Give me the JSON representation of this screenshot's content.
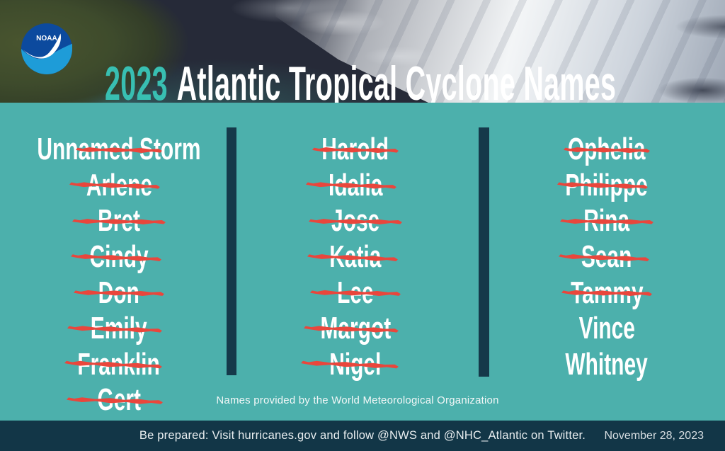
{
  "header": {
    "logo_text": "NOAA",
    "title_year": "2023",
    "title_rest": "Atlantic Tropical Cyclone Names"
  },
  "columns": [
    {
      "names": [
        {
          "label": "Unnamed Storm",
          "struck": true
        },
        {
          "label": "Arlene",
          "struck": true
        },
        {
          "label": "Bret",
          "struck": true
        },
        {
          "label": "Cindy",
          "struck": true
        },
        {
          "label": "Don",
          "struck": true
        },
        {
          "label": "Emily",
          "struck": true
        },
        {
          "label": "Franklin",
          "struck": true
        },
        {
          "label": "Gert",
          "struck": true
        }
      ]
    },
    {
      "names": [
        {
          "label": "Harold",
          "struck": true
        },
        {
          "label": "Idalia",
          "struck": true
        },
        {
          "label": "Jose",
          "struck": true
        },
        {
          "label": "Katia",
          "struck": true
        },
        {
          "label": "Lee",
          "struck": true
        },
        {
          "label": "Margot",
          "struck": true
        },
        {
          "label": "Nigel",
          "struck": true
        }
      ]
    },
    {
      "names": [
        {
          "label": "Ophelia",
          "struck": true
        },
        {
          "label": "Philippe",
          "struck": true
        },
        {
          "label": "Rina",
          "struck": true
        },
        {
          "label": "Sean",
          "struck": true
        },
        {
          "label": "Tammy",
          "struck": true
        },
        {
          "label": "Vince",
          "struck": false
        },
        {
          "label": "Whitney",
          "struck": false
        }
      ]
    }
  ],
  "caption": "Names provided by the World Meteorological Organization",
  "footer": {
    "message": "Be prepared: Visit hurricanes.gov and follow @NWS and @NHC_Atlantic on Twitter.",
    "date": "November 28, 2023"
  },
  "colors": {
    "teal_bg": "#4cb0ac",
    "accent_teal": "#38bfb2",
    "strike_red": "#e9463c",
    "footer_navy": "#123647",
    "divider_navy": "#15394a"
  }
}
